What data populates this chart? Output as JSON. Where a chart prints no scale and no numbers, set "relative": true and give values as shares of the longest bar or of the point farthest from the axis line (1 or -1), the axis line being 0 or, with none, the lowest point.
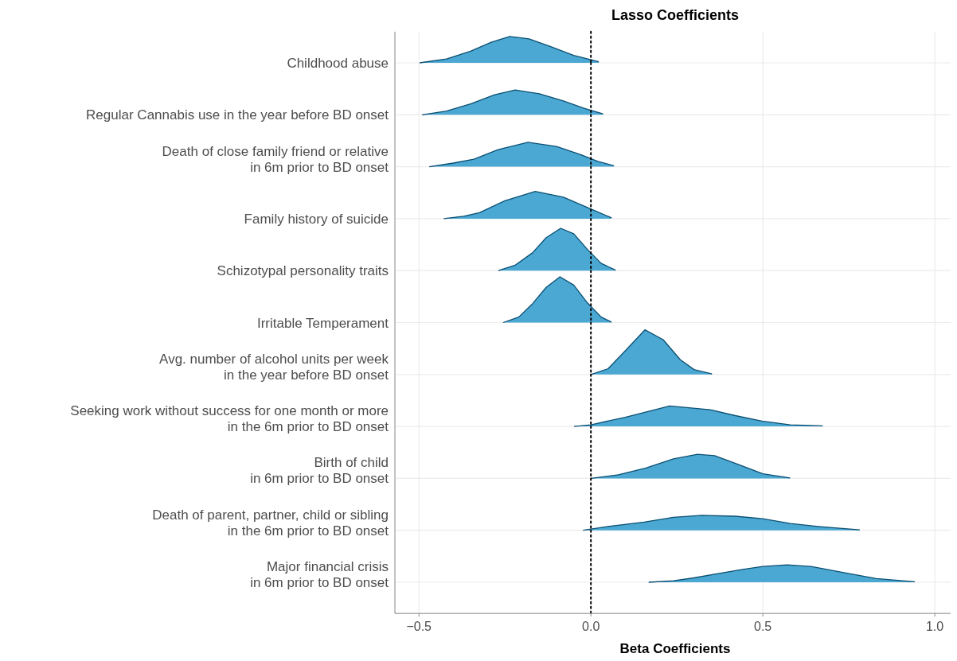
{
  "chart_data": [
    {
      "type": "area",
      "title": "Lasso Coefficients",
      "ylabel": "Childhood abuse",
      "relative": true,
      "grid": true,
      "tick_labels": false,
      "xlim": [
        -0.57,
        1.06
      ],
      "xticks": [
        -0.5,
        0,
        0.5,
        1
      ],
      "ref_lines": [
        {
          "axis": "x",
          "value": 0,
          "color": "#000000",
          "line_style": "dotted"
        }
      ],
      "series": [
        {
          "color": "#4ba8d3",
          "x": [
            -0.498,
            -0.42,
            -0.35,
            -0.29,
            -0.236,
            -0.18,
            -0.12,
            -0.05,
            0.023
          ],
          "values": [
            0,
            0.15,
            0.44,
            0.78,
            1,
            0.91,
            0.63,
            0.28,
            0.04
          ]
        }
      ]
    },
    {
      "type": "area",
      "ylabel": "Regular Cannabis use in the year before BD onset",
      "relative": true,
      "grid": true,
      "tick_labels": false,
      "xlim": [
        -0.57,
        1.06
      ],
      "xticks": [
        -0.5,
        0,
        0.5,
        1
      ],
      "ref_lines": [
        {
          "axis": "x",
          "value": 0,
          "color": "#000000",
          "line_style": "dotted"
        }
      ],
      "series": [
        {
          "color": "#4ba8d3",
          "x": [
            -0.491,
            -0.42,
            -0.35,
            -0.28,
            -0.22,
            -0.15,
            -0.08,
            -0.02,
            0.035
          ],
          "values": [
            0,
            0.15,
            0.44,
            0.81,
            1,
            0.85,
            0.56,
            0.26,
            0.04
          ]
        }
      ]
    },
    {
      "type": "area",
      "ylabel": "Death of close family friend or relative\nin 6m prior to BD onset",
      "relative": true,
      "grid": true,
      "tick_labels": false,
      "xlim": [
        -0.57,
        1.06
      ],
      "xticks": [
        -0.5,
        0,
        0.5,
        1
      ],
      "ref_lines": [
        {
          "axis": "x",
          "value": 0,
          "color": "#000000",
          "line_style": "dotted"
        }
      ],
      "series": [
        {
          "color": "#4ba8d3",
          "x": [
            -0.47,
            -0.4,
            -0.34,
            -0.27,
            -0.183,
            -0.1,
            -0.03,
            0.02,
            0.067
          ],
          "values": [
            0,
            0.15,
            0.31,
            0.7,
            1,
            0.83,
            0.5,
            0.22,
            0.04
          ]
        }
      ]
    },
    {
      "type": "area",
      "ylabel": "Family history of suicide",
      "relative": true,
      "grid": true,
      "tick_labels": false,
      "xlim": [
        -0.57,
        1.06
      ],
      "xticks": [
        -0.5,
        0,
        0.5,
        1
      ],
      "ref_lines": [
        {
          "axis": "x",
          "value": 0,
          "color": "#000000",
          "line_style": "dotted"
        }
      ],
      "series": [
        {
          "color": "#4ba8d3",
          "x": [
            -0.428,
            -0.37,
            -0.324,
            -0.25,
            -0.162,
            -0.08,
            -0.01,
            0.06
          ],
          "values": [
            0,
            0.09,
            0.22,
            0.66,
            1,
            0.79,
            0.41,
            0.03
          ]
        }
      ]
    },
    {
      "type": "area",
      "ylabel": "Schizotypal personality traits",
      "relative": true,
      "grid": true,
      "tick_labels": false,
      "xlim": [
        -0.57,
        1.06
      ],
      "xticks": [
        -0.5,
        0,
        0.5,
        1
      ],
      "ref_lines": [
        {
          "axis": "x",
          "value": 0,
          "color": "#000000",
          "line_style": "dotted"
        }
      ],
      "series": [
        {
          "color": "#4ba8d3",
          "x": [
            -0.269,
            -0.22,
            -0.17,
            -0.13,
            -0.088,
            -0.05,
            -0.01,
            0.03,
            0.072
          ],
          "values": [
            0,
            0.13,
            0.42,
            0.78,
            1,
            0.87,
            0.5,
            0.17,
            0.01
          ]
        }
      ]
    },
    {
      "type": "area",
      "ylabel": "Irritable Temperament",
      "relative": true,
      "grid": true,
      "tick_labels": false,
      "xlim": [
        -0.57,
        1.06
      ],
      "xticks": [
        -0.5,
        0,
        0.5,
        1
      ],
      "ref_lines": [
        {
          "axis": "x",
          "value": 0,
          "color": "#000000",
          "line_style": "dotted"
        }
      ],
      "series": [
        {
          "color": "#4ba8d3",
          "x": [
            -0.255,
            -0.21,
            -0.17,
            -0.13,
            -0.09,
            -0.05,
            -0.01,
            0.03,
            0.06
          ],
          "values": [
            0,
            0.12,
            0.41,
            0.77,
            1,
            0.82,
            0.43,
            0.12,
            0.01
          ]
        }
      ]
    },
    {
      "type": "area",
      "ylabel": "Avg. number of alcohol units per week\nin the year before BD onset",
      "relative": true,
      "grid": true,
      "tick_labels": false,
      "xlim": [
        -0.57,
        1.06
      ],
      "xticks": [
        -0.5,
        0,
        0.5,
        1
      ],
      "ref_lines": [
        {
          "axis": "x",
          "value": 0,
          "color": "#000000",
          "line_style": "dotted"
        }
      ],
      "series": [
        {
          "color": "#4ba8d3",
          "x": [
            0,
            0.05,
            0.1,
            0.157,
            0.21,
            0.26,
            0.3,
            0.352
          ],
          "values": [
            0,
            0.13,
            0.53,
            1,
            0.78,
            0.33,
            0.11,
            0.01
          ]
        }
      ]
    },
    {
      "type": "area",
      "ylabel": "Seeking work without success for one month or more\nin the 6m prior to BD onset",
      "relative": true,
      "grid": true,
      "tick_labels": false,
      "xlim": [
        -0.57,
        1.06
      ],
      "xticks": [
        -0.5,
        0,
        0.5,
        1
      ],
      "ref_lines": [
        {
          "axis": "x",
          "value": 0,
          "color": "#000000",
          "line_style": "dotted"
        }
      ],
      "series": [
        {
          "color": "#4ba8d3",
          "x": [
            -0.049,
            0,
            0.1,
            0.229,
            0.347,
            0.42,
            0.497,
            0.58,
            0.674
          ],
          "values": [
            0,
            0.08,
            0.45,
            1,
            0.82,
            0.53,
            0.26,
            0.08,
            0.03
          ]
        }
      ]
    },
    {
      "type": "area",
      "ylabel": "Birth of child\nin 6m prior to BD onset",
      "relative": true,
      "grid": true,
      "tick_labels": false,
      "xlim": [
        -0.57,
        1.06
      ],
      "xticks": [
        -0.5,
        0,
        0.5,
        1
      ],
      "ref_lines": [
        {
          "axis": "x",
          "value": 0,
          "color": "#000000",
          "line_style": "dotted"
        }
      ],
      "series": [
        {
          "color": "#4ba8d3",
          "x": [
            0,
            0.08,
            0.16,
            0.24,
            0.31,
            0.36,
            0.43,
            0.5,
            0.579
          ],
          "values": [
            0,
            0.15,
            0.43,
            0.81,
            1,
            0.94,
            0.57,
            0.19,
            0.02
          ]
        }
      ]
    },
    {
      "type": "area",
      "ylabel": "Death of parent, partner, child or sibling\nin the 6m prior to BD onset",
      "relative": true,
      "grid": true,
      "tick_labels": false,
      "xlim": [
        -0.57,
        1.06
      ],
      "xticks": [
        -0.5,
        0,
        0.5,
        1
      ],
      "ref_lines": [
        {
          "axis": "x",
          "value": 0,
          "color": "#000000",
          "line_style": "dotted"
        }
      ],
      "series": [
        {
          "color": "#4ba8d3",
          "x": [
            -0.023,
            0.05,
            0.155,
            0.24,
            0.322,
            0.42,
            0.5,
            0.58,
            0.66,
            0.782
          ],
          "values": [
            0,
            0.26,
            0.55,
            0.87,
            1,
            0.94,
            0.77,
            0.45,
            0.26,
            0.03
          ]
        }
      ]
    },
    {
      "type": "area",
      "ylabel": "Major financial crisis\nin 6m prior to BD onset",
      "xlabel": "Beta Coefficients",
      "relative": true,
      "grid": true,
      "tick_labels": "x",
      "xlim": [
        -0.57,
        1.06
      ],
      "xticks": [
        {
          "value": -0.5,
          "label": "−0.5"
        },
        {
          "value": 0,
          "label": "0.0"
        },
        {
          "value": 0.5,
          "label": "0.5"
        },
        {
          "value": 1,
          "label": "1.0"
        }
      ],
      "ref_lines": [
        {
          "axis": "x",
          "value": 0,
          "color": "#000000",
          "line_style": "dotted"
        }
      ],
      "series": [
        {
          "color": "#4ba8d3",
          "x": [
            0.168,
            0.24,
            0.296,
            0.37,
            0.441,
            0.5,
            0.571,
            0.64,
            0.751,
            0.83,
            0.942
          ],
          "values": [
            0,
            0.09,
            0.24,
            0.5,
            0.74,
            0.91,
            1,
            0.91,
            0.5,
            0.21,
            0.03
          ]
        }
      ]
    }
  ]
}
